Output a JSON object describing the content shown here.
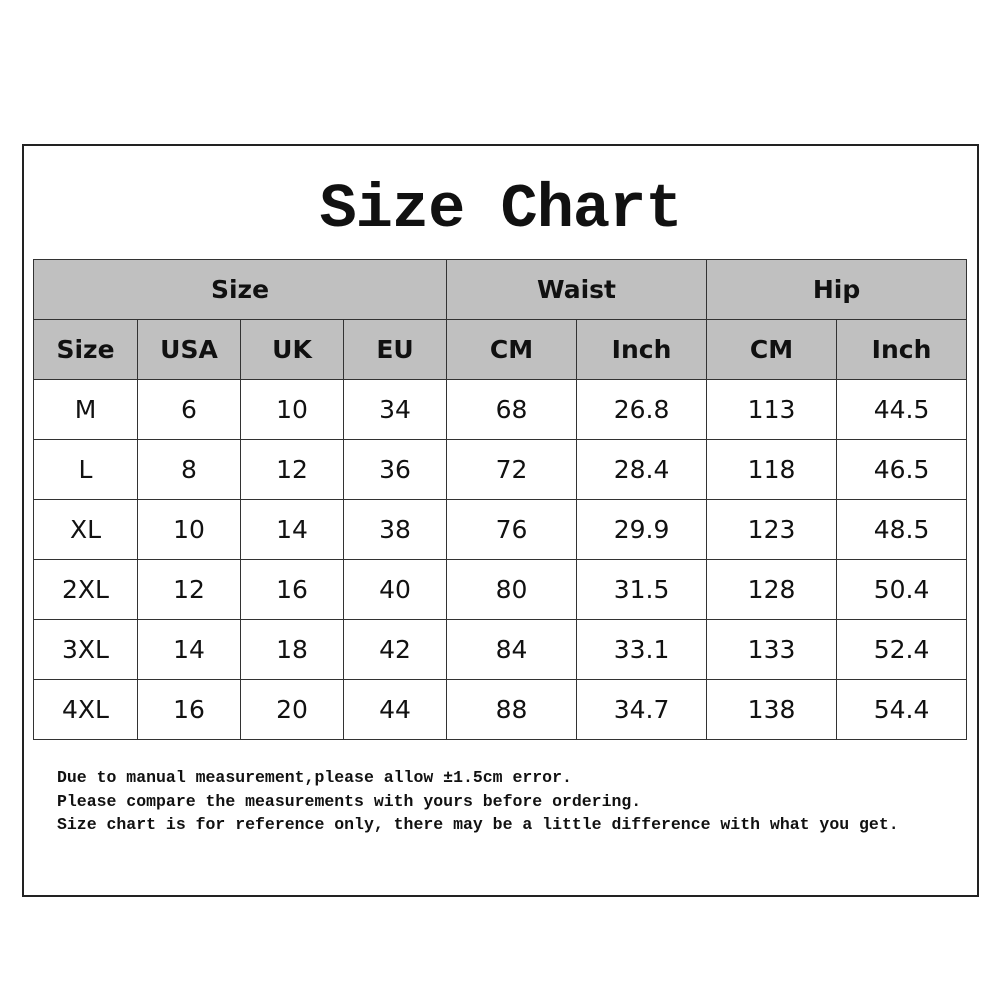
{
  "title": "Size Chart",
  "colors": {
    "header_bg": "#c0c0c0",
    "border": "#333333"
  },
  "group_headers": [
    {
      "label": "Size",
      "span": 4
    },
    {
      "label": "Waist",
      "span": 2
    },
    {
      "label": "Hip",
      "span": 2
    }
  ],
  "columns": [
    "Size",
    "USA",
    "UK",
    "EU",
    "CM",
    "Inch",
    "CM",
    "Inch"
  ],
  "rows": [
    [
      "M",
      "6",
      "10",
      "34",
      "68",
      "26.8",
      "113",
      "44.5"
    ],
    [
      "L",
      "8",
      "12",
      "36",
      "72",
      "28.4",
      "118",
      "46.5"
    ],
    [
      "XL",
      "10",
      "14",
      "38",
      "76",
      "29.9",
      "123",
      "48.5"
    ],
    [
      "2XL",
      "12",
      "16",
      "40",
      "80",
      "31.5",
      "128",
      "50.4"
    ],
    [
      "3XL",
      "14",
      "18",
      "42",
      "84",
      "33.1",
      "133",
      "52.4"
    ],
    [
      "4XL",
      "16",
      "20",
      "44",
      "88",
      "34.7",
      "138",
      "54.4"
    ]
  ],
  "notes": [
    "Due to manual measurement,please allow ±1.5cm error.",
    "Please compare the measurements with yours before ordering.",
    "Size chart is for reference only, there may be a little difference with what you get."
  ]
}
